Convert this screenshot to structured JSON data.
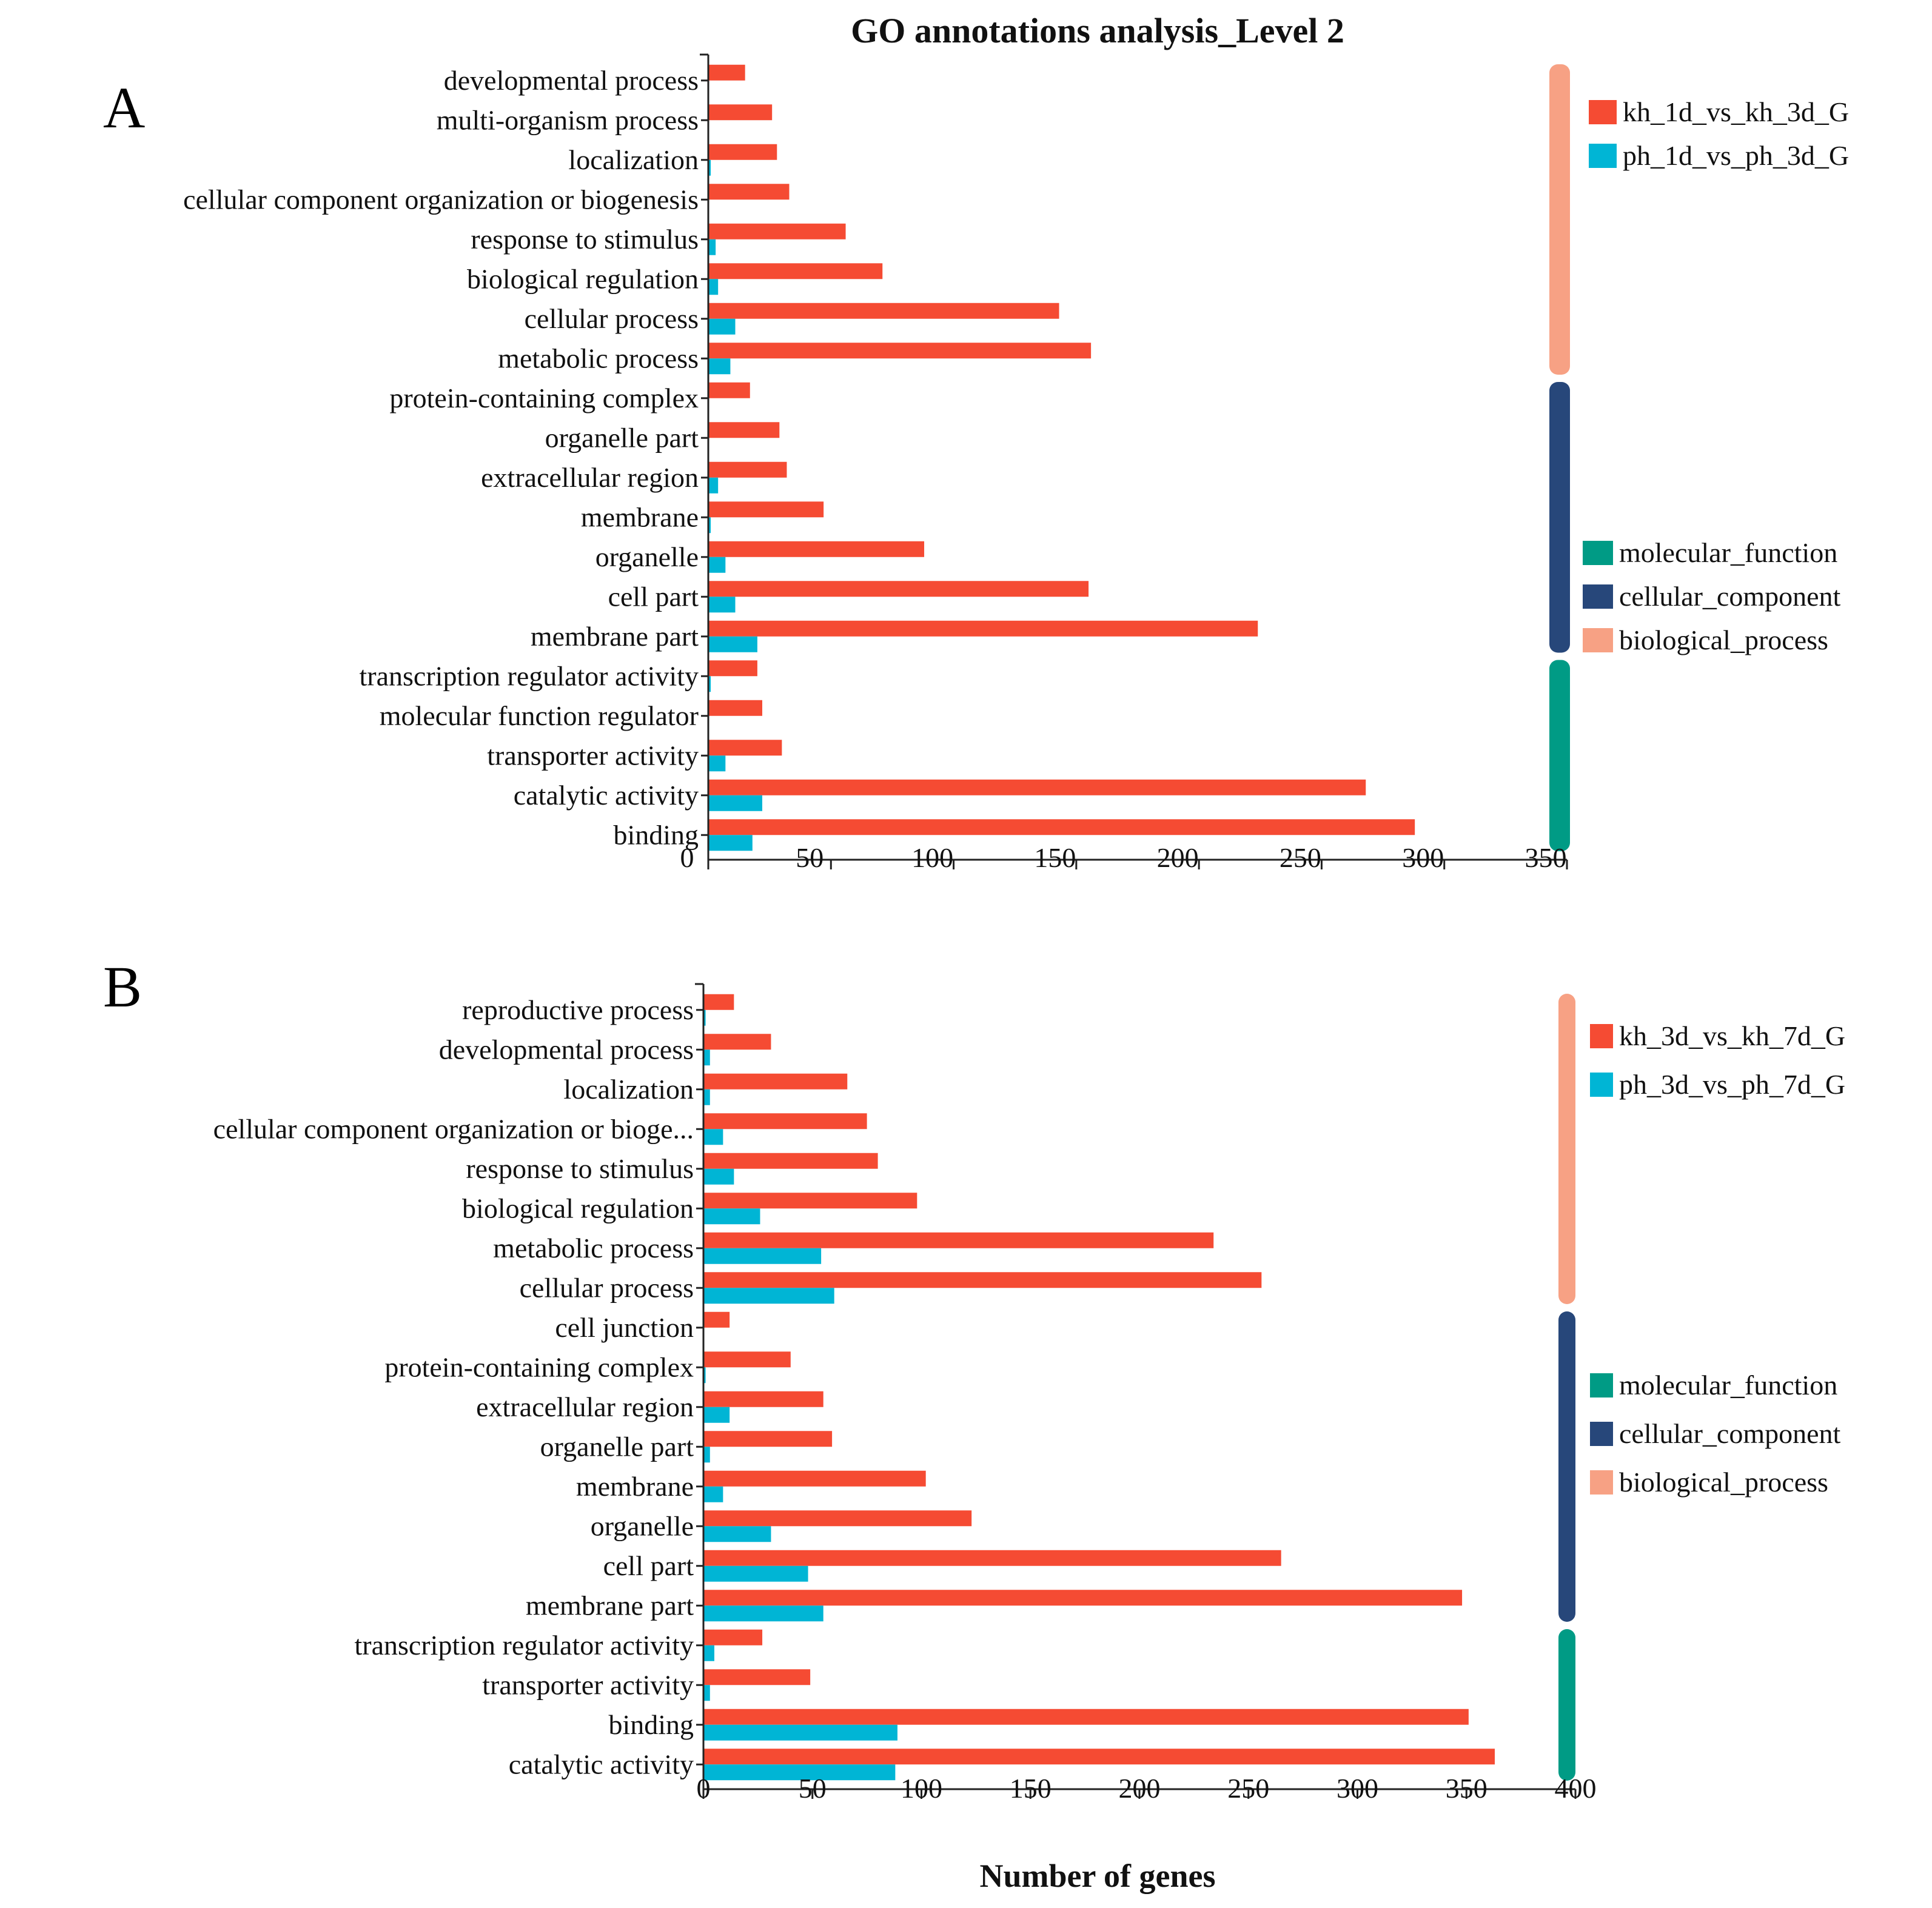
{
  "chart_data": {
    "title": "GO annotations analysis_Level 2",
    "xlabel": "Number of genes",
    "category_colors": {
      "molecular_function": "#009B85",
      "cellular_component": "#27477A",
      "biological_process": "#F7A184"
    },
    "series_colors": [
      "#F54B33",
      "#00B5D5"
    ],
    "panels": [
      {
        "label": "A",
        "type": "bar",
        "orientation": "horizontal",
        "xlim": [
          0,
          350
        ],
        "xticks": [
          0,
          50,
          100,
          150,
          200,
          250,
          300,
          350
        ],
        "categories": [
          "developmental process",
          "multi-organism process",
          "localization",
          "cellular component organization or biogenesis",
          "response to stimulus",
          "biological regulation",
          "cellular process",
          "metabolic process",
          "protein-containing complex",
          "organelle part",
          "extracellular region",
          "membrane",
          "organelle",
          "cell part",
          "membrane part",
          "transcription regulator activity",
          "molecular function regulator",
          "transporter activity",
          "catalytic activity",
          "binding"
        ],
        "groups": [
          {
            "name": "biological_process",
            "from": 0,
            "to": 7
          },
          {
            "name": "cellular_component",
            "from": 8,
            "to": 14
          },
          {
            "name": "molecular_function",
            "from": 15,
            "to": 19
          }
        ],
        "series": [
          {
            "name": "kh_1d_vs_kh_3d_G",
            "values": [
              15,
              26,
              28,
              33,
              56,
              71,
              143,
              156,
              17,
              29,
              32,
              47,
              88,
              155,
              224,
              20,
              22,
              30,
              268,
              288
            ]
          },
          {
            "name": "ph_1d_vs_ph_3d_G",
            "values": [
              0,
              0,
              1,
              0,
              3,
              4,
              11,
              9,
              0,
              0,
              4,
              1,
              7,
              11,
              20,
              1,
              0,
              7,
              22,
              18
            ]
          }
        ],
        "legend": {
          "series_labels": [
            "kh_1d_vs_kh_3d_G",
            "ph_1d_vs_ph_3d_G"
          ],
          "category_labels": [
            "molecular_function",
            "cellular_component",
            "biological_process"
          ]
        }
      },
      {
        "label": "B",
        "type": "bar",
        "orientation": "horizontal",
        "xlim": [
          0,
          400
        ],
        "xticks": [
          0,
          50,
          100,
          150,
          200,
          250,
          300,
          350,
          400
        ],
        "categories": [
          "reproductive process",
          "developmental process",
          "localization",
          "cellular component organization or bioge...",
          "response to stimulus",
          "biological regulation",
          "metabolic process",
          "cellular process",
          "cell junction",
          "protein-containing complex",
          "extracellular region",
          "organelle part",
          "membrane",
          "organelle",
          "cell part",
          "membrane part",
          "transcription regulator activity",
          "transporter activity",
          "binding",
          "catalytic activity"
        ],
        "groups": [
          {
            "name": "biological_process",
            "from": 0,
            "to": 7
          },
          {
            "name": "cellular_component",
            "from": 8,
            "to": 15
          },
          {
            "name": "molecular_function",
            "from": 16,
            "to": 19
          }
        ],
        "series": [
          {
            "name": "kh_3d_vs_kh_7d_G",
            "values": [
              14,
              31,
              66,
              75,
              80,
              98,
              234,
              256,
              12,
              40,
              55,
              59,
              102,
              123,
              265,
              348,
              27,
              49,
              351,
              363
            ]
          },
          {
            "name": "ph_3d_vs_ph_7d_G",
            "values": [
              1,
              3,
              3,
              9,
              14,
              26,
              54,
              60,
              0,
              1,
              12,
              3,
              9,
              31,
              48,
              55,
              5,
              3,
              89,
              88
            ]
          }
        ],
        "legend": {
          "series_labels": [
            "kh_3d_vs_kh_7d_G",
            "ph_3d_vs_ph_7d_G"
          ],
          "category_labels": [
            "molecular_function",
            "cellular_component",
            "biological_process"
          ]
        }
      }
    ]
  }
}
